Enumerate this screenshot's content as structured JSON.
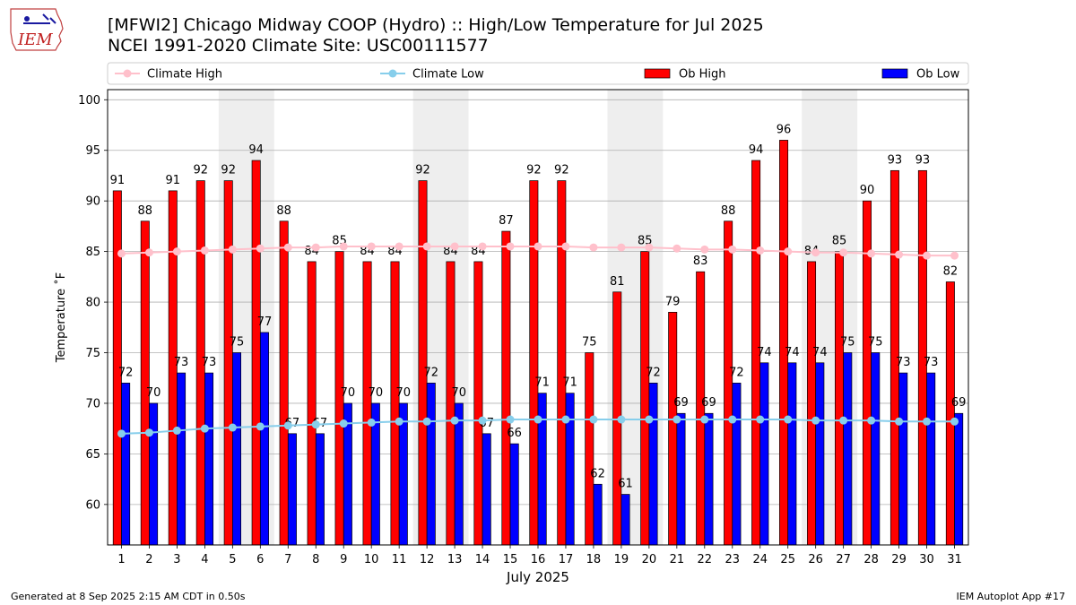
{
  "logo_text": "IEM",
  "footer": {
    "generated": "Generated at 8 Sep 2025 2:15 AM CDT in 0.50s",
    "app": "IEM Autoplot App #17"
  },
  "colors": {
    "ob_high": "#ff0000",
    "ob_low": "#0000ff",
    "climate_high": "#ffc0cb",
    "climate_low": "#87ceeb",
    "weekend_band": "#eeeeee",
    "grid": "#b0b0b0"
  },
  "chart_data": {
    "type": "bar",
    "title": "[MFWI2] Chicago Midway COOP (Hydro) :: High/Low Temperature for Jul 2025",
    "subtitle": "NCEI 1991-2020 Climate Site: USC00111577",
    "xlabel": "July 2025",
    "ylabel": "Temperature ˚F",
    "ylim": [
      56,
      101
    ],
    "yticks": [
      60,
      65,
      70,
      75,
      80,
      85,
      90,
      95,
      100
    ],
    "grid": true,
    "legend_position": "top",
    "categories": [
      "1",
      "2",
      "3",
      "4",
      "5",
      "6",
      "7",
      "8",
      "9",
      "10",
      "11",
      "12",
      "13",
      "14",
      "15",
      "16",
      "17",
      "18",
      "19",
      "20",
      "21",
      "22",
      "23",
      "24",
      "25",
      "26",
      "27",
      "28",
      "29",
      "30",
      "31"
    ],
    "shaded_days": [
      [
        5,
        6
      ],
      [
        12,
        13
      ],
      [
        19,
        20
      ],
      [
        26,
        27
      ]
    ],
    "series": [
      {
        "name": "Ob High",
        "kind": "bar",
        "values": [
          91,
          88,
          91,
          92,
          92,
          94,
          88,
          84,
          85,
          84,
          84,
          92,
          84,
          84,
          87,
          92,
          92,
          75,
          81,
          85,
          79,
          83,
          88,
          94,
          96,
          84,
          85,
          90,
          93,
          93,
          82
        ]
      },
      {
        "name": "Ob Low",
        "kind": "bar",
        "values": [
          72,
          70,
          73,
          73,
          75,
          77,
          67,
          67,
          70,
          70,
          70,
          72,
          70,
          67,
          66,
          71,
          71,
          62,
          61,
          72,
          69,
          69,
          72,
          74,
          74,
          74,
          75,
          75,
          73,
          73,
          69
        ]
      },
      {
        "name": "Climate High",
        "kind": "line",
        "values": [
          84.8,
          84.9,
          85.0,
          85.1,
          85.2,
          85.3,
          85.4,
          85.4,
          85.5,
          85.5,
          85.5,
          85.5,
          85.5,
          85.5,
          85.5,
          85.5,
          85.5,
          85.4,
          85.4,
          85.4,
          85.3,
          85.2,
          85.2,
          85.1,
          85.0,
          84.9,
          84.9,
          84.8,
          84.7,
          84.6,
          84.6
        ]
      },
      {
        "name": "Climate Low",
        "kind": "line",
        "values": [
          67.0,
          67.1,
          67.3,
          67.5,
          67.6,
          67.7,
          67.8,
          67.9,
          68.0,
          68.1,
          68.2,
          68.2,
          68.3,
          68.3,
          68.4,
          68.4,
          68.4,
          68.4,
          68.4,
          68.4,
          68.4,
          68.4,
          68.4,
          68.4,
          68.4,
          68.3,
          68.3,
          68.3,
          68.2,
          68.2,
          68.2
        ]
      }
    ]
  }
}
